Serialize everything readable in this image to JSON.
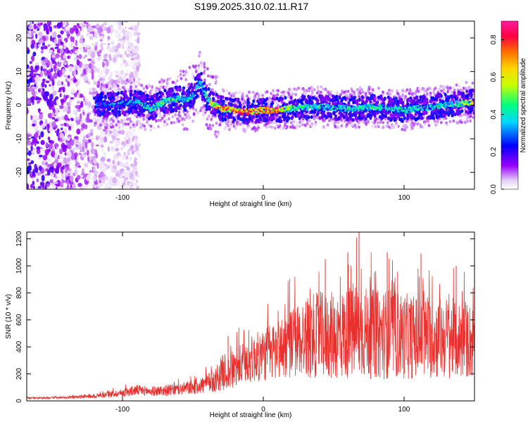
{
  "title": "S199.2025.310.02.11.R17",
  "chart_data": [
    {
      "type": "heatmap",
      "name": "spectrogram",
      "xlabel": "Height of straight line (km)",
      "ylabel": "Frequency (Hz)",
      "xlim": [
        -168,
        150
      ],
      "ylim": [
        -25,
        25
      ],
      "x_ticks": [
        -100,
        0,
        100
      ],
      "y_ticks": [
        -20,
        -10,
        0,
        10,
        20
      ],
      "ridge": {
        "description": "frequency of dominant spectral ridge vs height",
        "x": [
          -115,
          -100,
          -90,
          -80,
          -70,
          -60,
          -55,
          -50,
          -45,
          -40,
          -35,
          -30,
          -20,
          -10,
          0,
          10,
          20,
          40,
          60,
          80,
          100,
          120,
          140,
          148
        ],
        "y": [
          0,
          0.5,
          1,
          -1,
          1,
          2,
          1.5,
          3,
          7,
          2,
          0,
          -1,
          -1.5,
          -2,
          -1.5,
          -1.5,
          -1,
          -0.5,
          -1,
          -0.5,
          -1.5,
          -0.5,
          0.5,
          1
        ],
        "peak_amplitude": [
          0.35,
          0.4,
          0.45,
          0.55,
          0.6,
          0.55,
          0.5,
          0.5,
          0.45,
          0.55,
          0.75,
          0.85,
          0.9,
          0.9,
          0.9,
          0.85,
          0.55,
          0.5,
          0.5,
          0.5,
          0.5,
          0.5,
          0.55,
          0.75
        ]
      },
      "colorbar": {
        "label": "Normalized spectral amplitude",
        "range": [
          0.0,
          0.9
        ],
        "ticks": [
          "0.0",
          "0.2",
          "0.4",
          "0.6",
          "0.8"
        ]
      }
    },
    {
      "type": "line",
      "name": "snr",
      "xlabel": "Height of straight line (km)",
      "ylabel": "SNR (10 * v/v)",
      "xlim": [
        -168,
        150
      ],
      "ylim": [
        0,
        1250
      ],
      "x_ticks": [
        -100,
        0,
        100
      ],
      "y_ticks": [
        0,
        200,
        400,
        600,
        800,
        1000,
        1200
      ],
      "color": "#e8312e",
      "envelope": {
        "x": [
          -168,
          -140,
          -120,
          -100,
          -90,
          -80,
          -60,
          -45,
          -35,
          -28,
          -25,
          -20,
          -10,
          0,
          10,
          20,
          30,
          40,
          50,
          60,
          65,
          70,
          80,
          90,
          100,
          110,
          120,
          130,
          140,
          150
        ],
        "mean": [
          20,
          25,
          35,
          60,
          80,
          70,
          85,
          110,
          150,
          220,
          200,
          240,
          300,
          340,
          380,
          430,
          470,
          490,
          480,
          500,
          520,
          510,
          490,
          500,
          480,
          470,
          460,
          470,
          450,
          440
        ],
        "spread": [
          6,
          8,
          15,
          30,
          40,
          35,
          45,
          60,
          90,
          140,
          130,
          150,
          170,
          200,
          230,
          260,
          300,
          320,
          330,
          340,
          380,
          350,
          330,
          340,
          320,
          310,
          300,
          310,
          290,
          280
        ]
      },
      "peaks": [
        {
          "x": 68,
          "y": 1250
        },
        {
          "x": 88,
          "y": 1100
        },
        {
          "x": 112,
          "y": 1090
        },
        {
          "x": 44,
          "y": 1050
        },
        {
          "x": 60,
          "y": 1100
        },
        {
          "x": 137,
          "y": 1000
        },
        {
          "x": -25,
          "y": 480
        }
      ]
    }
  ]
}
